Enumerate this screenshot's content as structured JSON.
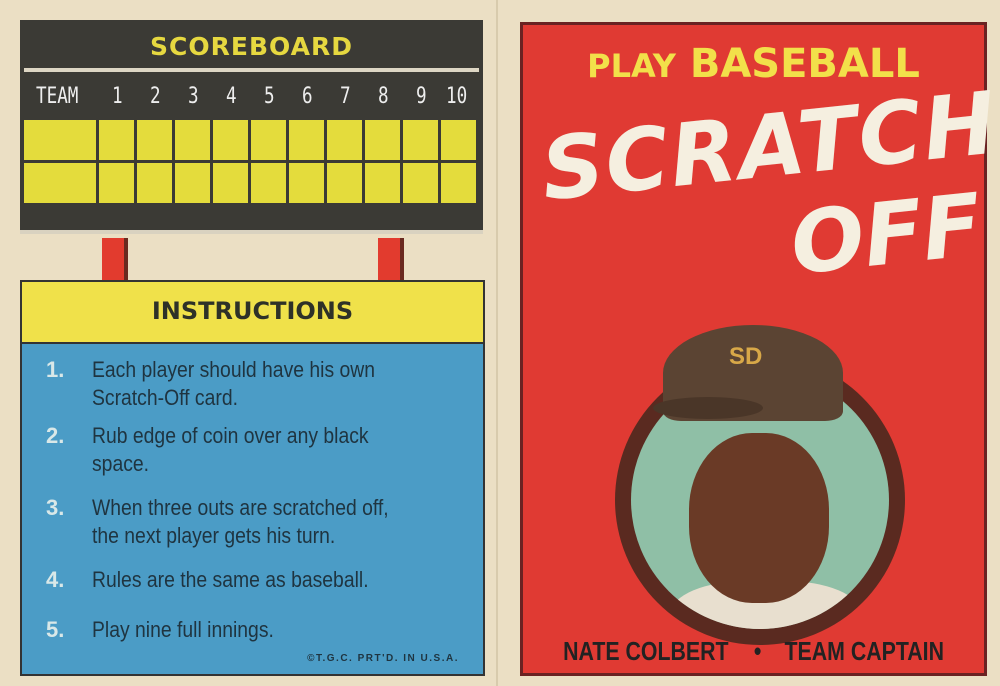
{
  "scoreboard": {
    "title": "SCOREBOARD",
    "headers": [
      "TEAM",
      "1",
      "2",
      "3",
      "4",
      "5",
      "6",
      "7",
      "8",
      "9",
      "10"
    ]
  },
  "instructions": {
    "title": "INSTRUCTIONS",
    "steps": [
      {
        "num": "1.",
        "lines": [
          "Each player should have his own",
          "Scratch-Off card."
        ]
      },
      {
        "num": "2.",
        "lines": [
          "Rub edge of coin over any black",
          "space."
        ]
      },
      {
        "num": "3.",
        "lines": [
          "When three outs are scratched off,",
          "the next player gets his turn."
        ]
      },
      {
        "num": "4.",
        "lines": [
          "Rules are the same as baseball."
        ]
      },
      {
        "num": "5.",
        "lines": [
          "Play nine full innings."
        ]
      }
    ],
    "copyright": "©T.G.C. PRT'D. IN U.S.A."
  },
  "card": {
    "play": "PLAY",
    "baseball": "BASEBALL",
    "scratch": "SCRATCH",
    "off": "OFF",
    "cap_logo": "SD",
    "player": "NATE COLBERT",
    "separator": "•",
    "role": "TEAM CAPTAIN"
  },
  "colors": {
    "board": "#3b3a35",
    "cells": "#e4dc3c",
    "instructions_blue": "#4b9cc6",
    "card_red": "#e03a33",
    "title_yellow": "#f2e04a"
  }
}
